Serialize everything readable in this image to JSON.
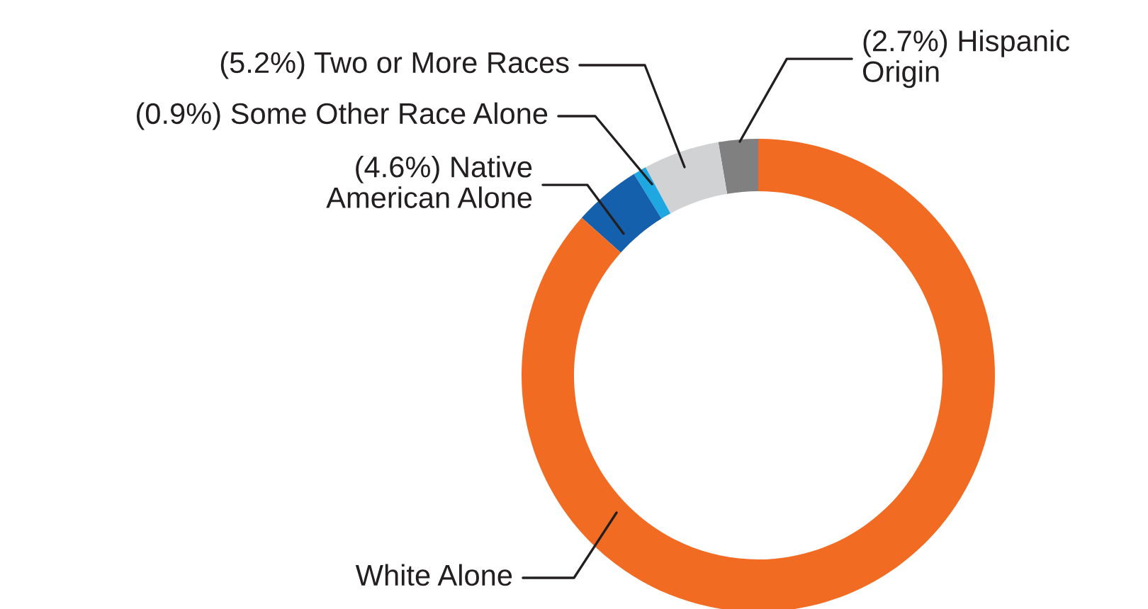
{
  "chart_data": {
    "type": "donut",
    "categories": [
      "Hispanic\nOrigin",
      "Two or More Races",
      "Some Other Race Alone",
      "Native\nAmerican Alone",
      "White Alone"
    ],
    "values": [
      2.7,
      5.2,
      0.9,
      4.6,
      86.6
    ],
    "colors": [
      "#808080",
      "#d1d2d4",
      "#1ea7e1",
      "#1560ad",
      "#f26b23"
    ],
    "value_labels": [
      "(2.7%)",
      "(5.2%)",
      "(0.9%)",
      "(4.6%)",
      null
    ],
    "legend": false
  }
}
